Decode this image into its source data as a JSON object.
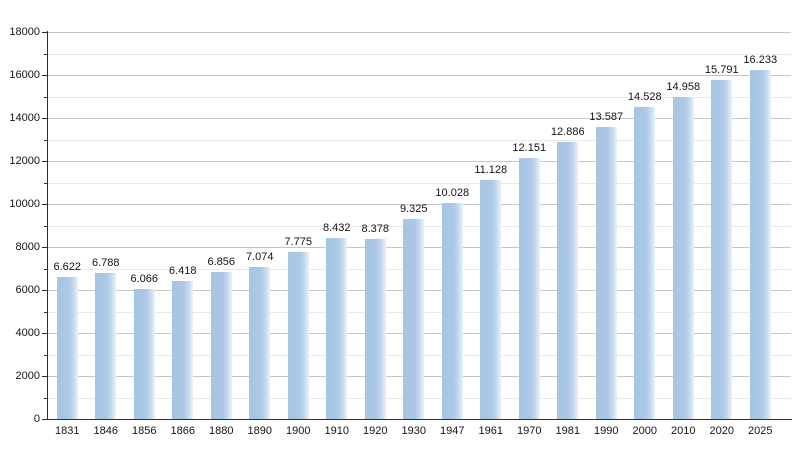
{
  "chart_data": {
    "type": "bar",
    "title": "",
    "categories": [
      "1831",
      "1846",
      "1856",
      "1866",
      "1880",
      "1890",
      "1900",
      "1910",
      "1920",
      "1930",
      "1947",
      "1961",
      "1970",
      "1981",
      "1990",
      "2000",
      "2010",
      "2020",
      "2025"
    ],
    "values": [
      6622,
      6788,
      6066,
      6418,
      6856,
      7074,
      7775,
      8432,
      8378,
      9325,
      10028,
      11128,
      12151,
      12886,
      13587,
      14528,
      14958,
      15791,
      16233
    ],
    "bar_labels": [
      "6.622",
      "6.788",
      "6.066",
      "6.418",
      "6.856",
      "7.074",
      "7.775",
      "8.432",
      "8.378",
      "9.325",
      "10.028",
      "11.128",
      "12.151",
      "12.886",
      "13.587",
      "14.528",
      "14.958",
      "15.791",
      "16.233"
    ],
    "xlabel": "",
    "ylabel": "",
    "ylim": [
      0,
      18000
    ],
    "y_major_step": 2000,
    "y_minor_step": 1000,
    "y_tick_labels": [
      "0",
      "2000",
      "4000",
      "6000",
      "8000",
      "10000",
      "12000",
      "14000",
      "16000",
      "18000"
    ],
    "grid": "major and minor horizontal gridlines, drawn behind bars",
    "legend_position": "none",
    "colors": {
      "bar_fill": "#a9c7e5",
      "bar_fade_right": "#eaf2f9",
      "major_grid": "#c6c6c6",
      "minor_grid": "#e9e9e9",
      "axis": "#2f2f2f",
      "text": "#141414",
      "background": "#ffffff"
    }
  }
}
